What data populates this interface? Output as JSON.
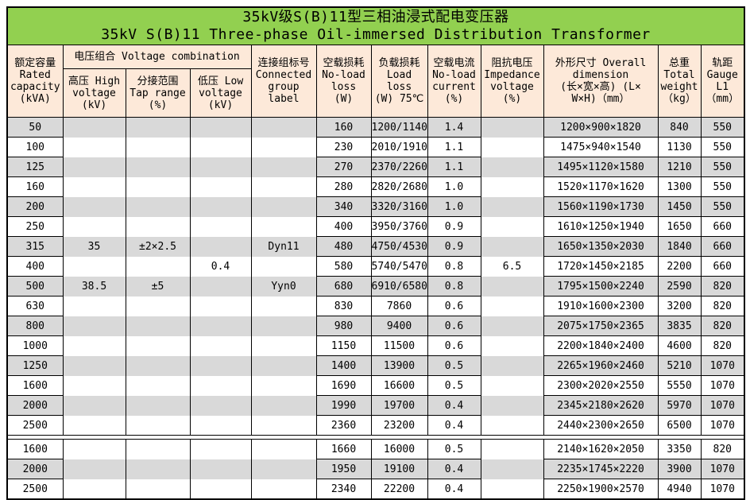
{
  "title": {
    "line1": "35kV级S(B)11型三相油浸式配电变压器",
    "line2": "35kV S(B)11 Three-phase Oil-immersed Distribution Transformer"
  },
  "header": {
    "rated_capacity": "额定容量\nRated\ncapacity\n(kVA)",
    "voltage_combination": "电压组合 Voltage combination",
    "high_voltage": "高压 High\nvoltage\n(kV)",
    "tap_range": "分接范围\nTap range\n(%)",
    "low_voltage": "低压 Low\nvoltage\n(kV)",
    "connected_group": "连接组标号\nConnected\ngroup\nlabel",
    "no_load_loss": "空载损耗\nNo-load\nloss\n(W)",
    "load_loss": "负载损耗\nLoad loss\n(W) 75℃",
    "no_load_current": "空载电流\nNo-load\ncurrent\n(%)",
    "impedance_voltage": "阻抗电压\nImpedance\nvoltage\n(%)",
    "overall_dimension": "外形尺寸 Overall\ndimension\n(长×宽×高) (L×\nW×H)（mm）",
    "total_weight": "总重\nTotal\nweight\n（kg）",
    "gauge": "轨距\nGauge\nL1\n（mm）"
  },
  "colors": {
    "title_bg": "#92d050",
    "header_bg": "#fde9d9",
    "band_gray": "#d9d9d9",
    "border": "#000000"
  },
  "rows": [
    [
      "50",
      "",
      "",
      "",
      "",
      "160",
      "1200/1140",
      "1.4",
      "",
      "1200×900×1820",
      "840",
      "550"
    ],
    [
      "100",
      "",
      "",
      "",
      "",
      "230",
      "2010/1910",
      "1.1",
      "",
      "1475×940×1540",
      "1130",
      "550"
    ],
    [
      "125",
      "",
      "",
      "",
      "",
      "270",
      "2370/2260",
      "1.1",
      "",
      "1495×1120×1580",
      "1210",
      "550"
    ],
    [
      "160",
      "",
      "",
      "",
      "",
      "280",
      "2820/2680",
      "1.0",
      "",
      "1520×1170×1620",
      "1300",
      "550"
    ],
    [
      "200",
      "",
      "",
      "",
      "",
      "340",
      "3320/3160",
      "1.0",
      "",
      "1560×1190×1730",
      "1450",
      "550"
    ],
    [
      "250",
      "",
      "",
      "",
      "",
      "400",
      "3950/3760",
      "0.9",
      "",
      "1610×1250×1940",
      "1650",
      "660"
    ],
    [
      "315",
      "35",
      "±2×2.5",
      "",
      "Dyn11",
      "480",
      "4750/4530",
      "0.9",
      "",
      "1650×1350×2030",
      "1840",
      "660"
    ],
    [
      "400",
      "",
      "",
      "0.4",
      "",
      "580",
      "5740/5470",
      "0.8",
      "6.5",
      "1720×1450×2185",
      "2200",
      "660"
    ],
    [
      "500",
      "38.5",
      "±5",
      "",
      "Yyn0",
      "680",
      "6910/6580",
      "0.8",
      "",
      "1795×1500×2240",
      "2590",
      "820"
    ],
    [
      "630",
      "",
      "",
      "",
      "",
      "830",
      "7860",
      "0.6",
      "",
      "1910×1600×2300",
      "3200",
      "820"
    ],
    [
      "800",
      "",
      "",
      "",
      "",
      "980",
      "9400",
      "0.6",
      "",
      "2075×1750×2365",
      "3835",
      "820"
    ],
    [
      "1000",
      "",
      "",
      "",
      "",
      "1150",
      "11500",
      "0.6",
      "",
      "2200×1840×2400",
      "4600",
      "820"
    ],
    [
      "1250",
      "",
      "",
      "",
      "",
      "1400",
      "13900",
      "0.5",
      "",
      "2265×1960×2460",
      "5210",
      "1070"
    ],
    [
      "1600",
      "",
      "",
      "",
      "",
      "1690",
      "16600",
      "0.5",
      "",
      "2300×2020×2550",
      "5550",
      "1070"
    ],
    [
      "2000",
      "",
      "",
      "",
      "",
      "1990",
      "19700",
      "0.4",
      "",
      "2345×2180×2620",
      "5970",
      "1070"
    ],
    [
      "2500",
      "",
      "",
      "",
      "",
      "2360",
      "23200",
      "0.4",
      "",
      "2440×2300×2650",
      "6500",
      "1070"
    ],
    [
      "1600",
      "",
      "",
      "",
      "",
      "1660",
      "16000",
      "0.5",
      "",
      "2140×1620×2050",
      "3350",
      "820"
    ],
    [
      "2000",
      "",
      "",
      "",
      "",
      "1950",
      "19100",
      "0.4",
      "",
      "2235×1745×2220",
      "3900",
      "1070"
    ],
    [
      "2500",
      "",
      "",
      "",
      "",
      "2340",
      "22200",
      "0.4",
      "",
      "2250×1900×2570",
      "4940",
      "1070"
    ]
  ]
}
